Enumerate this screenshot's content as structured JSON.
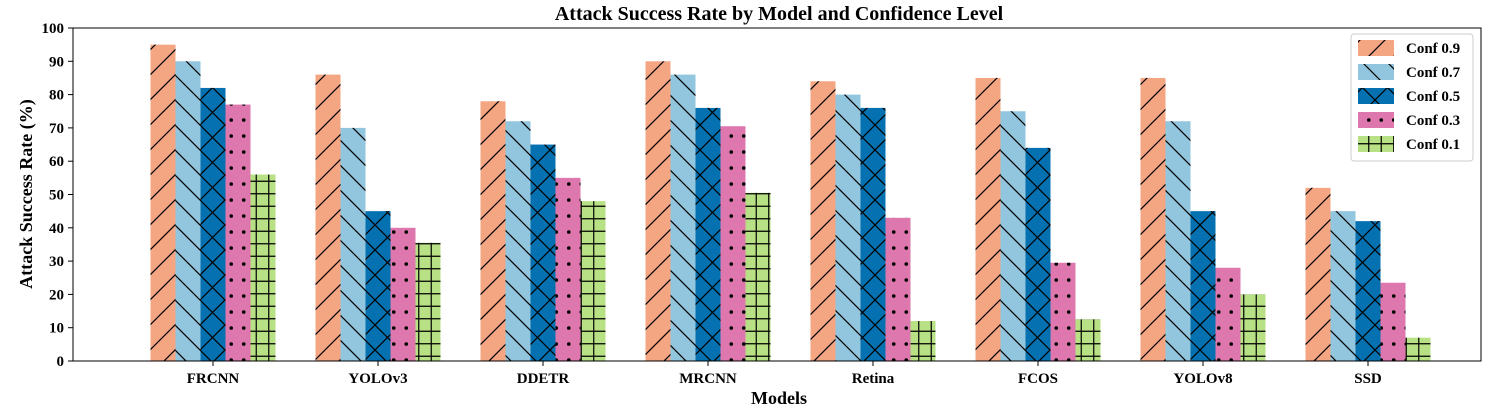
{
  "chart_data": {
    "type": "bar",
    "title": "Attack Success Rate by Model and Confidence Level",
    "xlabel": "Models",
    "ylabel": "Attack Success Rate (%)",
    "ylim": [
      0,
      100
    ],
    "yticks": [
      "0",
      "10",
      "20",
      "30",
      "40",
      "50",
      "60",
      "70",
      "80",
      "90",
      "100"
    ],
    "grid": false,
    "legend_position": "top-right",
    "categories": [
      "FRCNN",
      "YOLOv3",
      "DDETR",
      "MRCNN",
      "Retina",
      "FCOS",
      "YOLOv8",
      "SSD"
    ],
    "series": [
      {
        "name": "Conf 0.9",
        "color": "#F4A582",
        "hatch": "slash",
        "values": [
          95,
          86,
          78,
          90,
          84,
          85,
          85,
          52
        ]
      },
      {
        "name": "Conf 0.7",
        "color": "#92C5DE",
        "hatch": "backslash",
        "values": [
          90,
          70,
          72,
          86,
          80,
          75,
          72,
          45
        ]
      },
      {
        "name": "Conf 0.5",
        "color": "#0571B0",
        "hatch": "cross-diagonal",
        "values": [
          82,
          45,
          65,
          76,
          76,
          64,
          45,
          42
        ]
      },
      {
        "name": "Conf 0.3",
        "color": "#DE77AE",
        "hatch": "dots",
        "values": [
          77,
          40,
          55,
          70.5,
          43,
          29.5,
          28,
          23.5
        ]
      },
      {
        "name": "Conf 0.1",
        "color": "#B8E186",
        "hatch": "grid",
        "values": [
          56,
          35.5,
          48,
          50.5,
          12,
          12.5,
          20,
          7
        ]
      }
    ]
  }
}
